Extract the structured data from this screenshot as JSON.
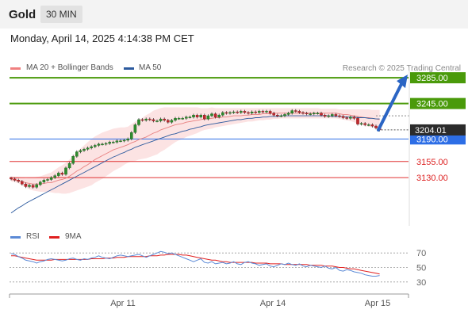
{
  "header": {
    "title": "Gold",
    "timeframe": "30 MIN"
  },
  "datetime": "Monday, April 14, 2025 4:14:38 PM CET",
  "credit": "Research © 2025 Trading Central",
  "legend_main": [
    {
      "label": "MA 20 + Bollinger Bands",
      "color": "#f08080"
    },
    {
      "label": "MA 50",
      "color": "#2c5a9e"
    }
  ],
  "legend_rsi": [
    {
      "label": "RSI",
      "color": "#5b8ad6"
    },
    {
      "label": "9MA",
      "color": "#e02020"
    }
  ],
  "chart_data": {
    "type": "candlestick",
    "timeframe": "30 MIN",
    "x_ticks": [
      "Apr 11",
      "Apr 14",
      "Apr 15"
    ],
    "ylim": [
      3055,
      3295
    ],
    "current_price": "3204.01",
    "levels": [
      {
        "value": 3285,
        "label": "3285.00",
        "color": "#4a9a0a",
        "kind": "resistance"
      },
      {
        "value": 3245,
        "label": "3245.00",
        "color": "#4a9a0a",
        "kind": "resistance"
      },
      {
        "value": 3190,
        "label": "3190.00",
        "color": "#2d6ee6",
        "kind": "pivot"
      },
      {
        "value": 3155,
        "label": "3155.00",
        "color": "#e03030",
        "kind": "support"
      },
      {
        "value": 3130,
        "label": "3130.00",
        "color": "#e03030",
        "kind": "support"
      }
    ],
    "close": [
      3128,
      3126,
      3124,
      3120,
      3116,
      3118,
      3115,
      3119,
      3123,
      3126,
      3127,
      3130,
      3133,
      3137,
      3135,
      3145,
      3152,
      3163,
      3170,
      3172,
      3174,
      3176,
      3178,
      3180,
      3182,
      3182,
      3183,
      3185,
      3185,
      3187,
      3187,
      3188,
      3190,
      3200,
      3212,
      3220,
      3219,
      3221,
      3220,
      3218,
      3218,
      3221,
      3219,
      3216,
      3219,
      3222,
      3222,
      3222,
      3224,
      3224,
      3227,
      3224,
      3227,
      3221,
      3226,
      3229,
      3224,
      3227,
      3231,
      3230,
      3231,
      3232,
      3231,
      3233,
      3231,
      3230,
      3232,
      3231,
      3233,
      3232,
      3233,
      3230,
      3227,
      3226,
      3226,
      3228,
      3230,
      3234,
      3233,
      3231,
      3230,
      3229,
      3229,
      3230,
      3230,
      3227,
      3225,
      3226,
      3228,
      3226,
      3225,
      3223,
      3222,
      3224,
      3222,
      3213,
      3214,
      3212,
      3212,
      3210,
      3207,
      3204
    ],
    "ma20": [
      3127,
      3126,
      3125,
      3124,
      3122,
      3121,
      3120,
      3120,
      3120,
      3121,
      3122,
      3122,
      3124,
      3126,
      3127,
      3129,
      3132,
      3136,
      3140,
      3143,
      3147,
      3150,
      3154,
      3158,
      3161,
      3164,
      3167,
      3170,
      3173,
      3175,
      3177,
      3179,
      3181,
      3184,
      3186,
      3189,
      3191,
      3193,
      3196,
      3199,
      3201,
      3204,
      3206,
      3208,
      3210,
      3212,
      3213,
      3214,
      3216,
      3217,
      3218,
      3219,
      3220,
      3221,
      3221,
      3222,
      3223,
      3223,
      3224,
      3224,
      3225,
      3226,
      3226,
      3226,
      3227,
      3227,
      3228,
      3228,
      3228,
      3229,
      3229,
      3229,
      3230,
      3230,
      3230,
      3230,
      3230,
      3230,
      3230,
      3230,
      3230,
      3230,
      3230,
      3230,
      3230,
      3230,
      3230,
      3230,
      3230,
      3230,
      3229,
      3228,
      3228,
      3227,
      3226,
      3225,
      3224,
      3223,
      3223,
      3222,
      3221,
      3220
    ],
    "bb_upper": [
      3132,
      3131,
      3131,
      3130,
      3129,
      3130,
      3130,
      3131,
      3132,
      3134,
      3136,
      3138,
      3142,
      3146,
      3149,
      3153,
      3158,
      3164,
      3170,
      3175,
      3180,
      3185,
      3190,
      3194,
      3197,
      3200,
      3202,
      3204,
      3206,
      3207,
      3208,
      3208,
      3209,
      3213,
      3217,
      3220,
      3223,
      3227,
      3230,
      3234,
      3236,
      3238,
      3239,
      3239,
      3239,
      3239,
      3239,
      3239,
      3239,
      3239,
      3239,
      3239,
      3238,
      3238,
      3238,
      3239,
      3238,
      3238,
      3238,
      3238,
      3238,
      3238,
      3238,
      3238,
      3238,
      3238,
      3238,
      3238,
      3238,
      3238,
      3238,
      3238,
      3238,
      3238,
      3238,
      3238,
      3238,
      3238,
      3238,
      3238,
      3238,
      3238,
      3238,
      3238,
      3238,
      3237,
      3237,
      3237,
      3237,
      3237,
      3236,
      3236,
      3236,
      3236,
      3236,
      3236,
      3236,
      3236,
      3236,
      3235,
      3235,
      3235
    ],
    "bb_lower": [
      3124,
      3123,
      3121,
      3118,
      3115,
      3112,
      3110,
      3109,
      3108,
      3108,
      3108,
      3107,
      3106,
      3106,
      3105,
      3105,
      3106,
      3108,
      3110,
      3112,
      3114,
      3116,
      3118,
      3122,
      3125,
      3128,
      3132,
      3136,
      3140,
      3143,
      3146,
      3150,
      3153,
      3155,
      3156,
      3158,
      3159,
      3160,
      3162,
      3164,
      3166,
      3170,
      3173,
      3177,
      3181,
      3185,
      3188,
      3190,
      3193,
      3195,
      3197,
      3199,
      3202,
      3204,
      3205,
      3206,
      3208,
      3209,
      3210,
      3211,
      3212,
      3213,
      3214,
      3215,
      3216,
      3217,
      3217,
      3218,
      3219,
      3219,
      3220,
      3220,
      3221,
      3221,
      3222,
      3222,
      3222,
      3222,
      3222,
      3222,
      3222,
      3222,
      3222,
      3222,
      3222,
      3222,
      3222,
      3222,
      3222,
      3222,
      3221,
      3220,
      3219,
      3218,
      3216,
      3214,
      3212,
      3210,
      3209,
      3208,
      3207,
      3205
    ],
    "ma50": [
      3075,
      3079,
      3083,
      3086,
      3090,
      3093,
      3096,
      3099,
      3102,
      3105,
      3108,
      3111,
      3114,
      3117,
      3120,
      3123,
      3126,
      3129,
      3132,
      3135,
      3138,
      3141,
      3144,
      3147,
      3150,
      3153,
      3156,
      3159,
      3162,
      3164,
      3167,
      3169,
      3172,
      3174,
      3177,
      3179,
      3181,
      3183,
      3185,
      3187,
      3189,
      3191,
      3193,
      3195,
      3197,
      3198,
      3200,
      3202,
      3203,
      3205,
      3206,
      3208,
      3209,
      3211,
      3212,
      3213,
      3214,
      3215,
      3216,
      3217,
      3218,
      3219,
      3220,
      3220,
      3221,
      3222,
      3222,
      3223,
      3223,
      3224,
      3224,
      3225,
      3225,
      3225,
      3226,
      3226,
      3226,
      3226,
      3226,
      3226,
      3226,
      3226,
      3226,
      3226,
      3226,
      3226,
      3226,
      3226,
      3225,
      3225,
      3225,
      3225,
      3224,
      3224,
      3224,
      3223,
      3223,
      3223,
      3222,
      3222,
      3221,
      3221
    ],
    "forecast_arrow": {
      "from": 3204.01,
      "to": 3285
    },
    "rsi_panel": {
      "ylim": [
        20,
        80
      ],
      "y_ticks": [
        70,
        50,
        30
      ],
      "rsi": [
        69,
        68,
        65,
        63,
        60,
        59,
        58,
        56,
        58,
        59,
        61,
        62,
        61,
        60,
        59,
        60,
        62,
        63,
        61,
        60,
        62,
        61,
        63,
        64,
        66,
        64,
        63,
        62,
        64,
        66,
        67,
        66,
        65,
        66,
        67,
        68,
        66,
        64,
        66,
        68,
        70,
        72,
        71,
        69,
        70,
        68,
        66,
        64,
        62,
        60,
        58,
        60,
        62,
        57,
        56,
        58,
        55,
        56,
        57,
        55,
        56,
        58,
        55,
        54,
        57,
        58,
        56,
        55,
        53,
        54,
        55,
        52,
        51,
        53,
        55,
        54,
        56,
        54,
        53,
        55,
        52,
        51,
        53,
        52,
        51,
        50,
        52,
        49,
        48,
        50,
        46,
        45,
        47,
        46,
        44,
        43,
        42,
        40,
        39,
        38,
        38,
        39
      ],
      "ma9": [
        66,
        66,
        65,
        64,
        63,
        62,
        61,
        60,
        60,
        60,
        60,
        60,
        61,
        61,
        61,
        61,
        61,
        61,
        61,
        61,
        61,
        61,
        62,
        62,
        62,
        62,
        63,
        63,
        63,
        64,
        64,
        64,
        65,
        65,
        65,
        65,
        65,
        65,
        66,
        66,
        66,
        67,
        67,
        68,
        68,
        68,
        68,
        67,
        67,
        66,
        65,
        64,
        63,
        62,
        61,
        60,
        60,
        59,
        58,
        58,
        57,
        57,
        57,
        57,
        57,
        57,
        57,
        56,
        56,
        56,
        56,
        55,
        55,
        55,
        55,
        54,
        54,
        54,
        54,
        54,
        54,
        54,
        53,
        53,
        53,
        53,
        52,
        52,
        52,
        51,
        50,
        50,
        49,
        48,
        48,
        47,
        46,
        45,
        44,
        43,
        42,
        41
      ]
    }
  }
}
